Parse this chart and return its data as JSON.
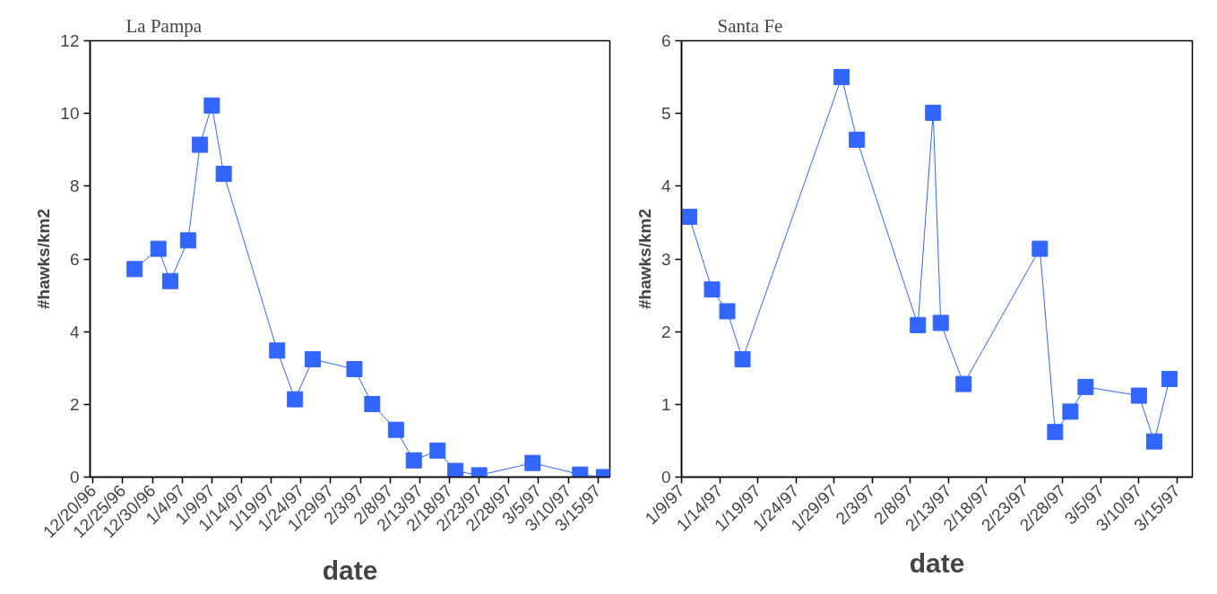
{
  "chart_data": [
    {
      "type": "line",
      "title": "La Pampa",
      "xlabel": "date",
      "ylabel": "#hawks/km2",
      "marker": "square",
      "line_style": "solid",
      "grid": false,
      "x": [
        "1996-12-27",
        "1996-12-31",
        "1997-01-02",
        "1997-01-05",
        "1997-01-07",
        "1997-01-09",
        "1997-01-11",
        "1997-01-20",
        "1997-01-23",
        "1997-01-26",
        "1997-02-02",
        "1997-02-05",
        "1997-02-09",
        "1997-02-12",
        "1997-02-16",
        "1997-02-19",
        "1997-02-23",
        "1997-03-04",
        "1997-03-12",
        "1997-03-16"
      ],
      "series": [
        {
          "color": "#3366ff",
          "values": [
            5.72,
            6.28,
            5.39,
            6.51,
            9.14,
            10.22,
            8.34,
            3.48,
            2.14,
            3.24,
            2.97,
            2.01,
            1.3,
            0.46,
            0.73,
            0.17,
            0.05,
            0.39,
            0.07,
            0.0
          ]
        }
      ],
      "xlim": [
        "1996-12-19T12:00",
        "1997-03-17"
      ],
      "ylim": [
        0,
        12
      ],
      "yticks": [
        0,
        2,
        4,
        6,
        8,
        10,
        12
      ],
      "xticks": [
        {
          "value": "1996-12-20",
          "label": "12/20/96"
        },
        {
          "value": "1996-12-25",
          "label": "12/25/96"
        },
        {
          "value": "1996-12-30",
          "label": "12/30/96"
        },
        {
          "value": "1997-01-04",
          "label": "1/4/97"
        },
        {
          "value": "1997-01-09",
          "label": "1/9/97"
        },
        {
          "value": "1997-01-14",
          "label": "1/14/97"
        },
        {
          "value": "1997-01-19",
          "label": "1/19/97"
        },
        {
          "value": "1997-01-24",
          "label": "1/24/97"
        },
        {
          "value": "1997-01-29",
          "label": "1/29/97"
        },
        {
          "value": "1997-02-03",
          "label": "2/3/97"
        },
        {
          "value": "1997-02-08",
          "label": "2/8/97"
        },
        {
          "value": "1997-02-13",
          "label": "2/13/97"
        },
        {
          "value": "1997-02-18",
          "label": "2/18/97"
        },
        {
          "value": "1997-02-23",
          "label": "2/23/97"
        },
        {
          "value": "1997-02-28",
          "label": "2/28/97"
        },
        {
          "value": "1997-03-05",
          "label": "3/5/97"
        },
        {
          "value": "1997-03-10",
          "label": "3/10/97"
        },
        {
          "value": "1997-03-15",
          "label": "3/15/97"
        }
      ]
    },
    {
      "type": "line",
      "title": "Santa Fe",
      "xlabel": "date",
      "ylabel": "#hawks/km2",
      "marker": "square",
      "line_style": "solid",
      "grid": false,
      "x": [
        "1997-01-10",
        "1997-01-13",
        "1997-01-15",
        "1997-01-17",
        "1997-01-30",
        "1997-02-01",
        "1997-02-09",
        "1997-02-11",
        "1997-02-12",
        "1997-02-15",
        "1997-02-25",
        "1997-02-27",
        "1997-03-01",
        "1997-03-03",
        "1997-03-10",
        "1997-03-12",
        "1997-03-14"
      ],
      "series": [
        {
          "color": "#3366ff",
          "values": [
            3.58,
            2.58,
            2.28,
            1.62,
            5.5,
            4.64,
            2.09,
            5.01,
            2.12,
            1.28,
            3.14,
            0.62,
            0.9,
            1.24,
            1.12,
            0.49,
            1.35
          ]
        }
      ],
      "xlim": [
        "1997-01-09",
        "1997-03-17"
      ],
      "ylim": [
        0,
        6
      ],
      "yticks": [
        0,
        1,
        2,
        3,
        4,
        5,
        6
      ],
      "xticks": [
        {
          "value": "1997-01-09",
          "label": "1/9/97"
        },
        {
          "value": "1997-01-14",
          "label": "1/14/97"
        },
        {
          "value": "1997-01-19",
          "label": "1/19/97"
        },
        {
          "value": "1997-01-24",
          "label": "1/24/97"
        },
        {
          "value": "1997-01-29",
          "label": "1/29/97"
        },
        {
          "value": "1997-02-03",
          "label": "2/3/97"
        },
        {
          "value": "1997-02-08",
          "label": "2/8/97"
        },
        {
          "value": "1997-02-13",
          "label": "2/13/97"
        },
        {
          "value": "1997-02-18",
          "label": "2/18/97"
        },
        {
          "value": "1997-02-23",
          "label": "2/23/97"
        },
        {
          "value": "1997-02-28",
          "label": "2/28/97"
        },
        {
          "value": "1997-03-05",
          "label": "3/5/97"
        },
        {
          "value": "1997-03-10",
          "label": "3/10/97"
        },
        {
          "value": "1997-03-15",
          "label": "3/15/97"
        }
      ]
    }
  ]
}
